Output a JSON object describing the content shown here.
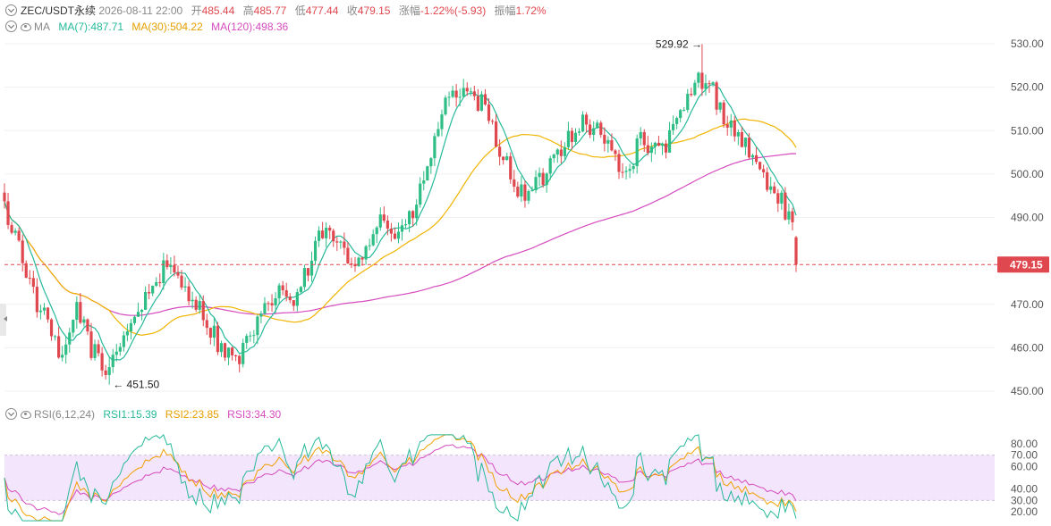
{
  "header": {
    "symbol": "ZEC/USDT永续",
    "datetime": "2026-08-11 22:00",
    "open_label": "开",
    "open": "485.44",
    "high_label": "高",
    "high": "485.77",
    "low_label": "低",
    "low": "477.44",
    "close_label": "收",
    "close": "479.15",
    "change_label": "涨幅",
    "change": "-1.22%(-5.93)",
    "amp_label": "振幅",
    "amp": "1.72%"
  },
  "ma_legend": {
    "title": "MA",
    "ma7": "MA(7):487.71",
    "ma30": "MA(30):504.22",
    "ma120": "MA(120):498.36"
  },
  "rsi_legend": {
    "title": "RSI(6,12,24)",
    "rsi1": "RSI1:15.39",
    "rsi2": "RSI2:23.85",
    "rsi3": "RSI3:34.30"
  },
  "colors": {
    "up": "#2ebd85",
    "down": "#e0484f",
    "ma7": "#26b99a",
    "ma30": "#f0b400",
    "ma120": "#d64bbf",
    "rsi1": "#26b99a",
    "rsi2": "#f0a000",
    "rsi3": "#d64bbf",
    "rsi_band": "#f3e5fb",
    "grid": "#f0f0f0"
  },
  "chart_data": {
    "type": "candlestick",
    "price_axis": {
      "ticks": [
        "530.00",
        "520.00",
        "510.00",
        "500.00",
        "490.00",
        "480.00",
        "470.00",
        "460.00",
        "450.00"
      ],
      "ylim": [
        448,
        533
      ]
    },
    "last_price": "479.15",
    "annotations": {
      "high": "529.92",
      "low": "451.50"
    },
    "rsi_axis": {
      "ticks": [
        "80.00",
        "70.00",
        "60.00",
        "40.00",
        "30.00",
        "20.00"
      ],
      "ylim": [
        16,
        86
      ],
      "band": [
        30,
        70
      ]
    },
    "anchors": [
      [
        0,
        492
      ],
      [
        4,
        484
      ],
      [
        8,
        472
      ],
      [
        12,
        465
      ],
      [
        16,
        456
      ],
      [
        20,
        470
      ],
      [
        24,
        460
      ],
      [
        28,
        454
      ],
      [
        32,
        462
      ],
      [
        36,
        467
      ],
      [
        40,
        473
      ],
      [
        44,
        478
      ],
      [
        48,
        476
      ],
      [
        52,
        472
      ],
      [
        56,
        466
      ],
      [
        60,
        460
      ],
      [
        64,
        457
      ],
      [
        68,
        462
      ],
      [
        72,
        468
      ],
      [
        76,
        474
      ],
      [
        80,
        470
      ],
      [
        84,
        478
      ],
      [
        88,
        487
      ],
      [
        92,
        484
      ],
      [
        96,
        479
      ],
      [
        100,
        484
      ],
      [
        104,
        490
      ],
      [
        108,
        486
      ],
      [
        112,
        489
      ],
      [
        116,
        498
      ],
      [
        120,
        511
      ],
      [
        124,
        520
      ],
      [
        128,
        517
      ],
      [
        132,
        516
      ],
      [
        136,
        508
      ],
      [
        140,
        500
      ],
      [
        144,
        494
      ],
      [
        148,
        498
      ],
      [
        152,
        504
      ],
      [
        156,
        509
      ],
      [
        160,
        512
      ],
      [
        164,
        510
      ],
      [
        168,
        505
      ],
      [
        172,
        500
      ],
      [
        176,
        508
      ],
      [
        180,
        505
      ],
      [
        184,
        508
      ],
      [
        188,
        515
      ],
      [
        192,
        522
      ],
      [
        196,
        519
      ],
      [
        200,
        512
      ],
      [
        204,
        508
      ],
      [
        208,
        502
      ],
      [
        212,
        497
      ],
      [
        216,
        492
      ],
      [
        219,
        485
      ]
    ]
  }
}
